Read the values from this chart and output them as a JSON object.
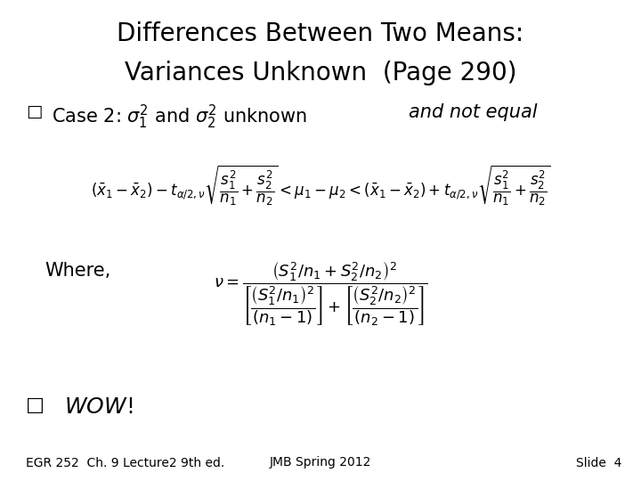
{
  "title_line1": "Differences Between Two Means:",
  "title_line2": "Variances Unknown  (Page 290)",
  "title_fontsize": 20,
  "title_color": "#000000",
  "bg_color": "#ffffff",
  "case_fontsize": 15,
  "formula_fontsize": 12,
  "where_fontsize": 15,
  "nu_fontsize": 13,
  "wow_fontsize": 18,
  "footer_fontsize": 10,
  "footer_left": "EGR 252  Ch. 9 Lecture2 9th ed.",
  "footer_center": "JMB Spring 2012",
  "footer_right": "Slide  4"
}
